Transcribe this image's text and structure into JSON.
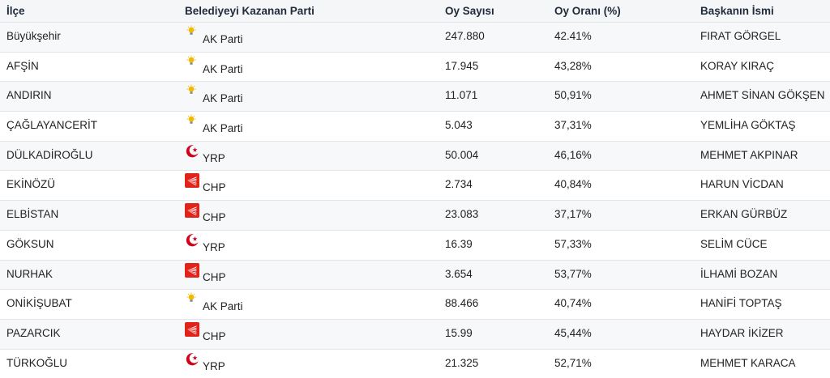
{
  "table": {
    "headers": {
      "ilce": "İlçe",
      "parti": "Belediyeyi Kazanan Parti",
      "oy": "Oy Sayısı",
      "oran": "Oy Oranı (%)",
      "baskan": "Başkanın İsmi"
    },
    "rows": [
      {
        "ilce": "Büyükşehir",
        "parti": "AK Parti",
        "logo": "ak-parti-bulb-icon",
        "oy": "247.880",
        "oran": "42.41%",
        "baskan": "FIRAT GÖRGEL"
      },
      {
        "ilce": "AFŞİN",
        "parti": "AK Parti",
        "logo": "ak-parti-bulb-icon",
        "oy": "17.945",
        "oran": "43,28%",
        "baskan": "KORAY KIRAÇ"
      },
      {
        "ilce": "ANDIRIN",
        "parti": "AK Parti",
        "logo": "ak-parti-bulb-icon",
        "oy": "11.071",
        "oran": "50,91%",
        "baskan": "AHMET SİNAN GÖKŞEN"
      },
      {
        "ilce": "ÇAĞLAYANCERİT",
        "parti": "AK Parti",
        "logo": "ak-parti-bulb-icon",
        "oy": "5.043",
        "oran": "37,31%",
        "baskan": "YEMLİHA GÖKTAŞ"
      },
      {
        "ilce": "DÜLKADİROĞLU",
        "parti": "YRP",
        "logo": "yrp-crescent-icon",
        "oy": "50.004",
        "oran": "46,16%",
        "baskan": "MEHMET AKPINAR"
      },
      {
        "ilce": "EKİNÖZÜ",
        "parti": "CHP",
        "logo": "chp-arrows-icon",
        "oy": "2.734",
        "oran": "40,84%",
        "baskan": "HARUN VİCDAN"
      },
      {
        "ilce": "ELBİSTAN",
        "parti": "CHP",
        "logo": "chp-arrows-icon",
        "oy": "23.083",
        "oran": "37,17%",
        "baskan": "ERKAN GÜRBÜZ"
      },
      {
        "ilce": "GÖKSUN",
        "parti": "YRP",
        "logo": "yrp-crescent-icon",
        "oy": "16.39",
        "oran": "57,33%",
        "baskan": "SELİM CÜCE"
      },
      {
        "ilce": "NURHAK",
        "parti": "CHP",
        "logo": "chp-arrows-icon",
        "oy": "3.654",
        "oran": "53,77%",
        "baskan": "İLHAMİ BOZAN"
      },
      {
        "ilce": "ONİKİŞUBAT",
        "parti": "AK Parti",
        "logo": "ak-parti-bulb-icon",
        "oy": "88.466",
        "oran": "40,74%",
        "baskan": "HANİFİ TOPTAŞ"
      },
      {
        "ilce": "PAZARCIK",
        "parti": "CHP",
        "logo": "chp-arrows-icon",
        "oy": "15.99",
        "oran": "45,44%",
        "baskan": "HAYDAR İKİZER"
      },
      {
        "ilce": "TÜRKOĞLU",
        "parti": "YRP",
        "logo": "yrp-crescent-icon",
        "oy": "21.325",
        "oran": "52,71%",
        "baskan": "MEHMET KARACA"
      }
    ]
  },
  "colors": {
    "header_bg": "#f4f6f8",
    "row_border": "#e3e5e8",
    "chp_red": "#e2231a",
    "yrp_red": "#d0021b",
    "ak_yellow": "#f5b800"
  }
}
